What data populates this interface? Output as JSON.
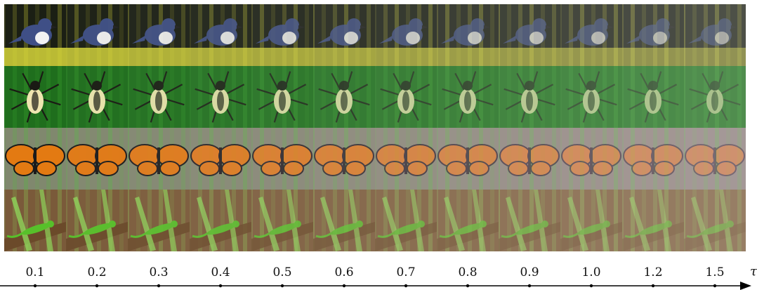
{
  "figure": {
    "axis_symbol": "τ",
    "tau_values": [
      "0.1",
      "0.2",
      "0.3",
      "0.4",
      "0.5",
      "0.6",
      "0.7",
      "0.8",
      "0.9",
      "1.0",
      "1.2",
      "1.5"
    ],
    "rows": [
      {
        "subject": "bird",
        "bg": "#1b1f14",
        "accent": "#d6d63a",
        "subject_color": "#3f4f86",
        "highlight": "#f2f2f2"
      },
      {
        "subject": "spider",
        "bg": "#1f6e1d",
        "accent": "#3faa33",
        "subject_color": "#1a1a14",
        "highlight": "#f0e6b0"
      },
      {
        "subject": "butterfly",
        "bg": "#9a6b8a",
        "accent": "#4fbf3a",
        "subject_color": "#e37a12",
        "highlight": "#1a1a1a"
      },
      {
        "subject": "lizard",
        "bg": "#7a5a3a",
        "accent": "#8fd45a",
        "subject_color": "#57c02a",
        "highlight": "#c9f07a"
      }
    ]
  }
}
